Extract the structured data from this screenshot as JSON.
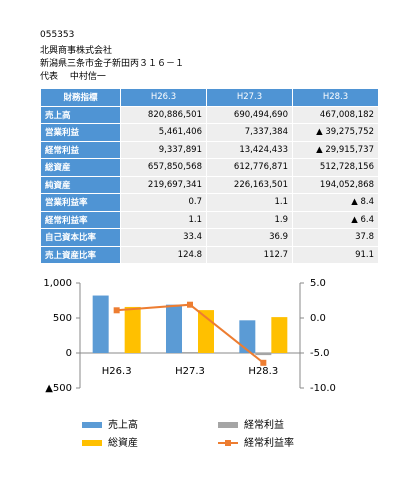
{
  "header": {
    "code": "055353",
    "company": "北興商事株式会社",
    "address": "新潟県三条市金子新田丙３１６－１",
    "representative": "代表　 中村信一"
  },
  "table": {
    "columns": [
      "財務指標",
      "H26.3",
      "H27.3",
      "H28.3"
    ],
    "rows": [
      [
        "売上高",
        "820,886,501",
        "690,494,690",
        "467,008,182"
      ],
      [
        "営業利益",
        "5,461,406",
        "7,337,384",
        "▲ 39,275,752"
      ],
      [
        "経常利益",
        "9,337,891",
        "13,424,433",
        "▲ 29,915,737"
      ],
      [
        "総資産",
        "657,850,568",
        "612,776,871",
        "512,728,156"
      ],
      [
        "純資産",
        "219,697,341",
        "226,163,501",
        "194,052,868"
      ],
      [
        "営業利益率",
        "0.7",
        "1.1",
        "▲ 8.4"
      ],
      [
        "経常利益率",
        "1.1",
        "1.9",
        "▲ 6.4"
      ],
      [
        "自己資本比率",
        "33.4",
        "36.9",
        "37.8"
      ],
      [
        "売上資産比率",
        "124.8",
        "112.7",
        "91.1"
      ]
    ]
  },
  "chart_data": {
    "type": "bar",
    "categories": [
      "H26.3",
      "H27.3",
      "H28.3"
    ],
    "series": [
      {
        "name": "売上高",
        "color": "#5b9bd5",
        "values": [
          820.9,
          690.5,
          467.0
        ]
      },
      {
        "name": "経常利益",
        "color": "#a5a5a5",
        "values": [
          9.3,
          13.4,
          -29.9
        ]
      },
      {
        "name": "総資産",
        "color": "#ffc000",
        "values": [
          657.9,
          612.8,
          512.7
        ]
      },
      {
        "name": "経常利益率",
        "color": "#ed7d31",
        "type": "line",
        "axis": "y2",
        "values": [
          1.1,
          1.9,
          -6.4
        ]
      }
    ],
    "ylim": [
      -500,
      1000
    ],
    "yticks": [
      {
        "value": -500,
        "label": "▲500"
      },
      0,
      500,
      {
        "value": 1000,
        "label": "1,000"
      }
    ],
    "y2lim": [
      -10,
      5
    ],
    "y2ticks": [
      {
        "value": -10,
        "label": "-10.0"
      },
      {
        "value": -5,
        "label": "-5.0"
      },
      {
        "value": 0,
        "label": "0.0"
      },
      {
        "value": 5,
        "label": "5.0"
      }
    ],
    "legend": "bottom"
  }
}
